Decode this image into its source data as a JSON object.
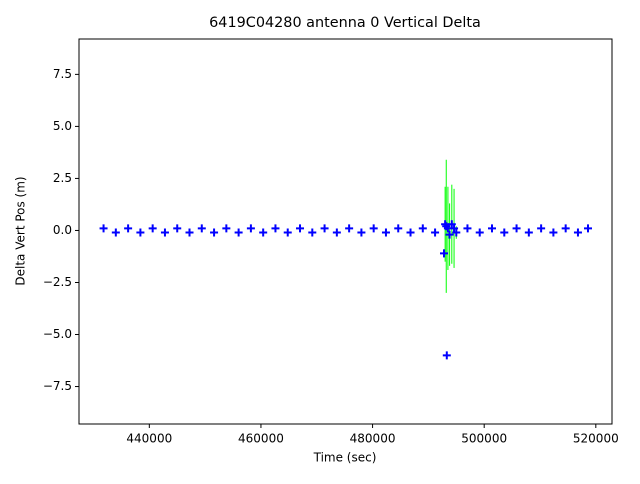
{
  "chart_data": {
    "type": "errorbar",
    "title": "6419C04280 antenna 0 Vertical Delta",
    "xlabel": "Time (sec)",
    "ylabel": "Delta Vert Pos (m)",
    "xlim": [
      427400,
      522900
    ],
    "ylim": [
      -9.3,
      9.2
    ],
    "xticks": [
      440000,
      460000,
      480000,
      500000,
      520000
    ],
    "yticks": [
      {
        "value": -7.5,
        "label": "−7.5"
      },
      {
        "value": -5.0,
        "label": "−5.0"
      },
      {
        "value": -2.5,
        "label": "−2.5"
      },
      {
        "value": 0.0,
        "label": "0.0"
      },
      2.5,
      {
        "value": 5.0,
        "label": "5.0"
      },
      7.5
    ],
    "marker_color": "#0000ff",
    "error_color": "#00ff00",
    "x": [
      431800,
      434000,
      436200,
      438400,
      440600,
      442800,
      445000,
      447200,
      449400,
      451600,
      453800,
      456000,
      458200,
      460400,
      462600,
      464800,
      467000,
      469200,
      471400,
      473600,
      475800,
      478000,
      480200,
      482400,
      484600,
      486800,
      489000,
      491200,
      492800,
      493000,
      493200,
      493300,
      493500,
      493800,
      494200,
      494600,
      495000,
      497000,
      499200,
      501400,
      503600,
      505800,
      508000,
      510200,
      512400,
      514600,
      516800,
      518600
    ],
    "values": [
      0.1,
      -0.1,
      0.1,
      -0.1,
      0.1,
      -0.1,
      0.1,
      -0.1,
      0.1,
      -0.1,
      0.1,
      -0.1,
      0.1,
      -0.1,
      0.1,
      -0.1,
      0.1,
      -0.1,
      0.1,
      -0.1,
      0.1,
      -0.1,
      0.1,
      -0.1,
      0.1,
      -0.1,
      0.1,
      -0.1,
      -1.1,
      0.3,
      0.2,
      -6.0,
      0.1,
      -0.2,
      0.3,
      0.1,
      -0.1,
      0.1,
      -0.1,
      0.1,
      -0.1,
      0.1,
      -0.1,
      0.1,
      -0.1,
      0.1,
      -0.1,
      0.1
    ],
    "errors": [
      0.05,
      0.05,
      0.05,
      0.05,
      0.05,
      0.05,
      0.05,
      0.05,
      0.05,
      0.05,
      0.05,
      0.05,
      0.05,
      0.05,
      0.05,
      0.05,
      0.05,
      0.05,
      0.05,
      0.05,
      0.05,
      0.05,
      0.05,
      0.05,
      0.05,
      0.05,
      0.05,
      0.05,
      0.2,
      1.8,
      3.2,
      0.1,
      2.0,
      1.5,
      1.9,
      1.9,
      0.3,
      0.05,
      0.05,
      0.05,
      0.05,
      0.05,
      0.05,
      0.05,
      0.05,
      0.05,
      0.05,
      0.05
    ]
  }
}
